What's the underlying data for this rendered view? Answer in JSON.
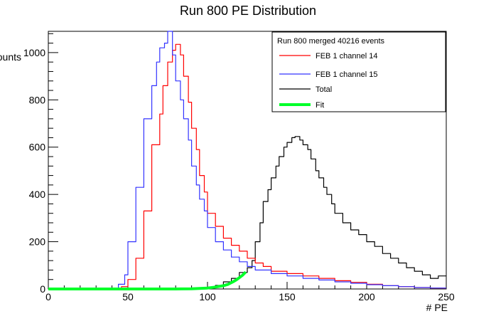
{
  "chart_data": {
    "type": "line",
    "title": "Run 800 PE Distribution",
    "xlabel": "# PE",
    "ylabel": "Counts",
    "xlim": [
      0,
      250
    ],
    "ylim": [
      0,
      1090
    ],
    "xticks": [
      0,
      50,
      100,
      150,
      200,
      250
    ],
    "yticks": [
      0,
      200,
      400,
      600,
      800,
      1000
    ],
    "grid": false,
    "legend": {
      "placement": "top-right",
      "header": "Run 800 merged 40216 events"
    },
    "series": [
      {
        "name": "FEB 1 channel 14",
        "color": "#ff0000",
        "style": "step",
        "x": [
          0,
          46,
          50,
          55,
          60,
          65,
          70,
          72,
          75,
          78,
          80,
          83,
          85,
          88,
          90,
          93,
          95,
          98,
          100,
          105,
          110,
          115,
          120,
          125,
          130,
          135,
          140,
          150,
          160,
          170,
          180,
          190,
          200,
          210,
          220,
          230,
          240,
          250
        ],
        "y": [
          0,
          0,
          10,
          40,
          130,
          330,
          610,
          740,
          860,
          960,
          1010,
          1035,
          990,
          900,
          790,
          680,
          590,
          480,
          410,
          320,
          265,
          215,
          185,
          160,
          130,
          110,
          95,
          75,
          65,
          55,
          45,
          35,
          28,
          20,
          14,
          10,
          6,
          4
        ]
      },
      {
        "name": "FEB 1 channel 15",
        "color": "#3333ff",
        "style": "step",
        "x": [
          0,
          44,
          48,
          50,
          55,
          60,
          65,
          68,
          70,
          73,
          75,
          78,
          80,
          83,
          85,
          88,
          90,
          93,
          95,
          98,
          100,
          105,
          110,
          115,
          120,
          125,
          130,
          140,
          150,
          160,
          170,
          180,
          190,
          200,
          210,
          220,
          230,
          240,
          250
        ],
        "y": [
          0,
          0,
          20,
          60,
          200,
          430,
          720,
          860,
          960,
          1020,
          1040,
          1090,
          990,
          880,
          800,
          720,
          630,
          520,
          440,
          380,
          330,
          260,
          200,
          165,
          135,
          115,
          95,
          80,
          65,
          55,
          45,
          38,
          30,
          24,
          18,
          14,
          10,
          6,
          4
        ]
      },
      {
        "name": "Total",
        "color": "#000000",
        "style": "step",
        "x": [
          0,
          100,
          105,
          110,
          115,
          120,
          125,
          128,
          130,
          133,
          135,
          138,
          140,
          143,
          145,
          148,
          150,
          153,
          155,
          158,
          160,
          163,
          165,
          168,
          170,
          173,
          175,
          178,
          180,
          185,
          190,
          195,
          200,
          205,
          210,
          215,
          220,
          225,
          230,
          235,
          240,
          245,
          250
        ],
        "y": [
          0,
          2,
          8,
          15,
          30,
          45,
          70,
          90,
          120,
          200,
          280,
          370,
          420,
          470,
          520,
          560,
          600,
          620,
          640,
          645,
          630,
          610,
          590,
          550,
          500,
          470,
          430,
          400,
          360,
          320,
          280,
          250,
          230,
          200,
          180,
          150,
          130,
          110,
          90,
          75,
          60,
          45,
          55
        ]
      },
      {
        "name": "Fit",
        "color": "#00ff2a",
        "style": "line",
        "x": [
          0,
          20,
          40,
          60,
          80,
          90,
          95,
          100,
          105,
          110,
          113,
          116,
          118,
          120,
          122,
          124
        ],
        "y": [
          0,
          0,
          0,
          0,
          0,
          1,
          2,
          4,
          8,
          14,
          20,
          30,
          38,
          48,
          58,
          72
        ]
      }
    ]
  }
}
